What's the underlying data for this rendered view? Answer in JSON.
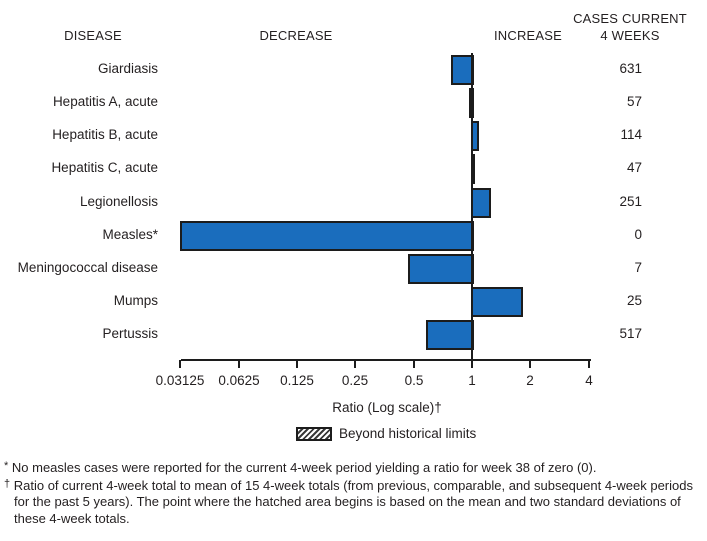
{
  "headers": {
    "disease": "DISEASE",
    "decrease": "DECREASE",
    "increase": "INCREASE",
    "cases_line1": "CASES CURRENT",
    "cases_line2": "4 WEEKS"
  },
  "chart_data": {
    "type": "bar",
    "orientation": "horizontal",
    "x_scale": "log2",
    "xlabel": "Ratio (Log scale)†",
    "x_ticks": [
      0.03125,
      0.0625,
      0.125,
      0.25,
      0.5,
      1,
      2,
      4
    ],
    "x_tick_labels": [
      "0.03125",
      "0.0625",
      "0.125",
      "0.25",
      "0.5",
      "1",
      "2",
      "4"
    ],
    "baseline_ratio": 1,
    "legend": "Beyond historical limits",
    "rows": [
      {
        "disease": "Giardiasis",
        "ratio": 0.78,
        "cases": "631"
      },
      {
        "disease": "Hepatitis A, acute",
        "ratio": 0.96,
        "cases": "57"
      },
      {
        "disease": "Hepatitis B, acute",
        "ratio": 1.06,
        "cases": "114"
      },
      {
        "disease": "Hepatitis C, acute",
        "ratio": 0.99,
        "cases": "47"
      },
      {
        "disease": "Legionellosis",
        "ratio": 1.22,
        "cases": "251"
      },
      {
        "disease": "Measles*",
        "ratio": 0.03125,
        "cases": "0"
      },
      {
        "disease": "Meningococcal disease",
        "ratio": 0.47,
        "cases": "7"
      },
      {
        "disease": "Mumps",
        "ratio": 1.79,
        "cases": "25"
      },
      {
        "disease": "Pertussis",
        "ratio": 0.58,
        "cases": "517"
      }
    ]
  },
  "footnotes": [
    {
      "marker": "*",
      "text": "No measles cases were reported for the current 4-week period yielding a ratio for week 38 of zero (0)."
    },
    {
      "marker": "†",
      "text": "Ratio of current 4-week total to mean of 15 4-week totals (from previous, comparable, and subsequent 4-week periods for the past 5 years). The point where the hatched area begins is based on the mean and two standard deviations of these 4-week totals."
    }
  ],
  "colors": {
    "bar_fill": "#1a6dbd",
    "bar_border": "#1c1c1c",
    "axis": "#1c1c1c",
    "text": "#231f20"
  }
}
